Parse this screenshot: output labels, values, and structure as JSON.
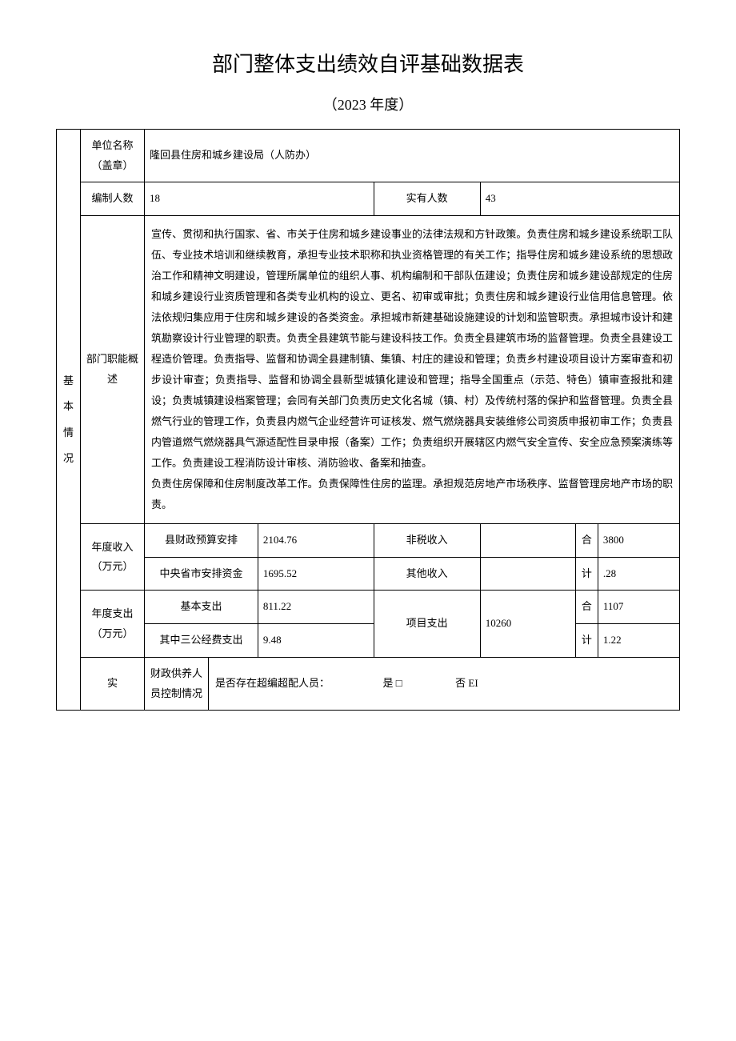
{
  "title": "部门整体支出绩效自评基础数据表",
  "year_label": "（2023 年度）",
  "section_basic": "基\n本\n情\n况",
  "section_actual": "实",
  "labels": {
    "unit_name": "单位名称（盖章）",
    "staff_quota": "编制人数",
    "staff_actual": "实有人数",
    "dept_function": "部门职能概述",
    "annual_income": "年度收入（万元）",
    "annual_expense": "年度支出（万元）",
    "personnel_control": "财政供养人员控制情况",
    "county_budget": "县财政预算安排",
    "central_funds": "中央省市安排资金",
    "nontax_income": "非税收入",
    "other_income": "其他收入",
    "total_he": "合",
    "total_ji": "计",
    "basic_expense": "基本支出",
    "three_public": "其中三公经费支出",
    "project_expense": "项目支出"
  },
  "values": {
    "unit_name": "隆回县住房和城乡建设局（人防办）",
    "staff_quota": "18",
    "staff_actual": "43",
    "dept_function": "宣传、贯彻和执行国家、省、市关于住房和城乡建设事业的法律法规和方针政策。负责住房和城乡建设系统职工队伍、专业技术培训和继续教育，承担专业技术职称和执业资格管理的有关工作；指导住房和城乡建设系统的思想政治工作和精神文明建设，管理所属单位的组织人事、机构编制和干部队伍建设；负责住房和城乡建设部规定的住房和城乡建设行业资质管理和各类专业机构的设立、更名、初审或审批；负责住房和城乡建设行业信用信息管理。依法依规归集应用于住房和城乡建设的各类资金。承担城市新建基础设施建设的计划和监管职责。承担城市设计和建筑勘察设计行业管理的职责。负责全县建筑节能与建设科技工作。负责全县建筑市场的监督管理。负责全县建设工程造价管理。负责指导、监督和协调全县建制镇、集镇、村庄的建设和管理；负责乡村建设项目设计方案审查和初步设计审查；负责指导、监督和协调全县新型城镇化建设和管理；指导全国重点（示范、特色）镇审查报批和建设；负责城镇建设档案管理；会同有关部门负责历史文化名城（镇、村）及传统村落的保护和监督管理。负责全县燃气行业的管理工作，负责县内燃气企业经营许可证核发、燃气燃烧器具安装维修公司资质申报初审工作；负责县内管道燃气燃烧器具气源适配性目录申报（备案）工作；负责组织开展辖区内燃气安全宣传、安全应急预案演练等工作。负责建设工程消防设计审核、消防验收、备案和抽查。\n负责住房保障和住房制度改革工作。负责保障性住房的监理。承担规范房地产市场秩序、监督管理房地产市场的职责。",
    "county_budget": "2104.76",
    "central_funds": "1695.52",
    "nontax_income": "",
    "other_income": "",
    "income_total_1": "3800",
    "income_total_2": ".28",
    "basic_expense": "811.22",
    "three_public": "9.48",
    "project_expense": "10260",
    "expense_total_1": "1107",
    "expense_total_2": "1.22",
    "overstaffed_question": "是否存在超编超配人员：",
    "opt_yes": "是 □",
    "opt_no": "否 EI"
  },
  "colors": {
    "text": "#000000",
    "background": "#ffffff",
    "border": "#000000"
  },
  "typography": {
    "title_fontsize": 26,
    "body_fontsize": 13,
    "line_height": 1.9
  }
}
